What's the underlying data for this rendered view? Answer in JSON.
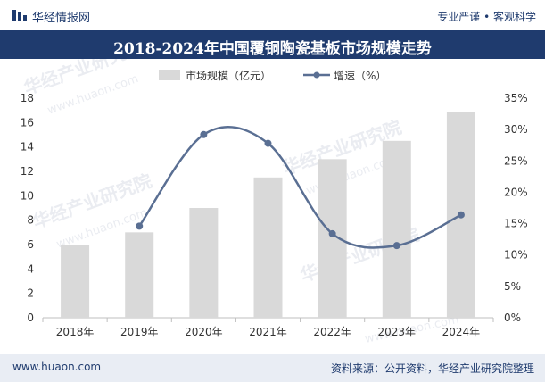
{
  "header": {
    "brand": "华经情报网",
    "tagline": "专业严谨 • 客观科学"
  },
  "title": "2018-2024年中国覆铜陶瓷基板市场规模走势",
  "footer": {
    "site": "www.huaon.com",
    "source": "资料来源：公开资料，华经产业研究院整理"
  },
  "watermark": {
    "text": "华经产业研究院",
    "url": "www.huaon.com"
  },
  "colors": {
    "brand_navy": "#1f3b6e",
    "bar": "#d9d9d9",
    "line": "#5a6f93",
    "footer_bg": "#e9edf4"
  },
  "chart_data": {
    "type": "bar+line",
    "title": "2018-2024年中国覆铜陶瓷基板市场规模走势",
    "categories": [
      "2018年",
      "2019年",
      "2020年",
      "2021年",
      "2022年",
      "2023年",
      "2024年"
    ],
    "series": [
      {
        "name": "市场规模（亿元）",
        "type": "bar",
        "axis": "left",
        "values": [
          6.0,
          7.0,
          9.0,
          11.5,
          13.0,
          14.5,
          16.9
        ]
      },
      {
        "name": "增速（%）",
        "type": "line",
        "axis": "right",
        "smooth": true,
        "values": [
          null,
          14.6,
          29.2,
          27.8,
          13.4,
          11.5,
          16.4
        ]
      }
    ],
    "y_left": {
      "min": 0,
      "max": 18,
      "step": 2,
      "ticks": [
        "0",
        "2",
        "4",
        "6",
        "8",
        "10",
        "12",
        "14",
        "16",
        "18"
      ]
    },
    "y_right": {
      "min": 0,
      "max": 35,
      "step": 5,
      "ticks": [
        "0%",
        "5%",
        "10%",
        "15%",
        "20%",
        "25%",
        "30%",
        "35%"
      ]
    },
    "grid": false,
    "legend_position": "top-center"
  }
}
